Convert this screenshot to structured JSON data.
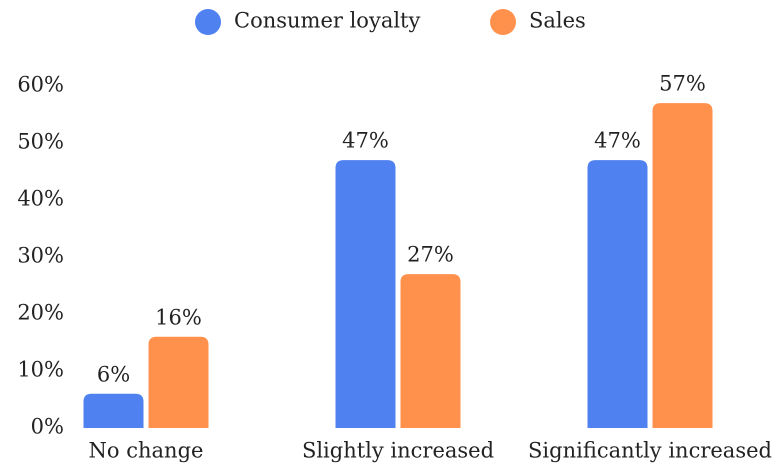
{
  "chart_data": {
    "type": "bar",
    "categories": [
      "No change",
      "Slightly increased",
      "Significantly increased"
    ],
    "series": [
      {
        "name": "Consumer loyalty",
        "color": "#4f81f1",
        "values": [
          6,
          47,
          47
        ],
        "value_labels": [
          "6%",
          "47%",
          "47%"
        ]
      },
      {
        "name": "Sales",
        "color": "#ff914d",
        "values": [
          16,
          27,
          57
        ],
        "value_labels": [
          "16%",
          "27%",
          "57%"
        ]
      }
    ],
    "ylim": [
      0,
      60
    ],
    "yticks": [
      {
        "value": 0,
        "label": "0%"
      },
      {
        "value": 10,
        "label": "10%"
      },
      {
        "value": 20,
        "label": "20%"
      },
      {
        "value": 30,
        "label": "30%"
      },
      {
        "value": 40,
        "label": "40%"
      },
      {
        "value": 50,
        "label": "50%"
      },
      {
        "value": 60,
        "label": "60%"
      }
    ],
    "legend": "top",
    "grid": false
  }
}
